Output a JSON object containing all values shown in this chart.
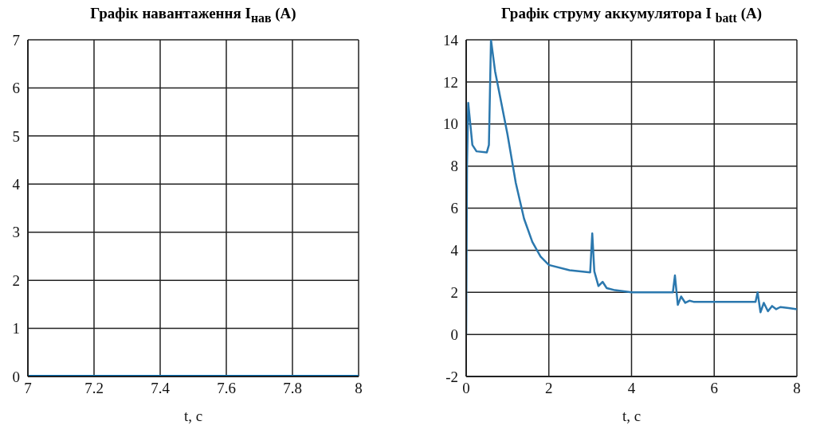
{
  "chart_data": [
    {
      "type": "line",
      "title": "Графік навантаження I$_{нав}$ (A)",
      "xlabel": "t, c",
      "x": [
        7,
        8
      ],
      "values": [
        0,
        0
      ],
      "color": "#0072bd",
      "xlim": [
        7,
        8
      ],
      "xticks": [
        7,
        7.2,
        7.4,
        7.6,
        7.8,
        8
      ],
      "ylim": [
        0,
        7
      ],
      "yticks": [
        0,
        1,
        2,
        3,
        4,
        5,
        6,
        7
      ],
      "grid": true
    },
    {
      "type": "line",
      "title": "Графік струму аккумулятора I $_{batt}$ (A)",
      "xlabel": "t, c",
      "color": "#2b78ae",
      "xlim": [
        0,
        8
      ],
      "xticks": [
        0,
        2,
        4,
        6,
        8
      ],
      "ylim": [
        -2,
        14
      ],
      "yticks": [
        -2,
        0,
        2,
        4,
        6,
        8,
        10,
        12,
        14
      ],
      "grid": true,
      "x": [
        0,
        0.02,
        0.05,
        0.15,
        0.25,
        0.5,
        0.55,
        0.6,
        0.7,
        0.8,
        1.0,
        1.2,
        1.4,
        1.6,
        1.8,
        2.0,
        2.5,
        3.0,
        3.05,
        3.1,
        3.2,
        3.3,
        3.4,
        3.6,
        4,
        5,
        5.05,
        5.12,
        5.2,
        5.3,
        5.4,
        5.5,
        6,
        7,
        7.05,
        7.12,
        7.2,
        7.3,
        7.4,
        7.5,
        7.6,
        7.8,
        8
      ],
      "values": [
        0,
        8,
        11,
        9,
        8.7,
        8.65,
        9,
        14,
        12.5,
        11.5,
        9.5,
        7.2,
        5.5,
        4.4,
        3.7,
        3.3,
        3.05,
        2.95,
        4.8,
        3,
        2.3,
        2.5,
        2.2,
        2.1,
        2,
        2,
        2.8,
        1.4,
        1.8,
        1.5,
        1.6,
        1.55,
        1.55,
        1.55,
        2,
        1.05,
        1.5,
        1.1,
        1.35,
        1.2,
        1.3,
        1.25,
        1.2
      ]
    }
  ]
}
